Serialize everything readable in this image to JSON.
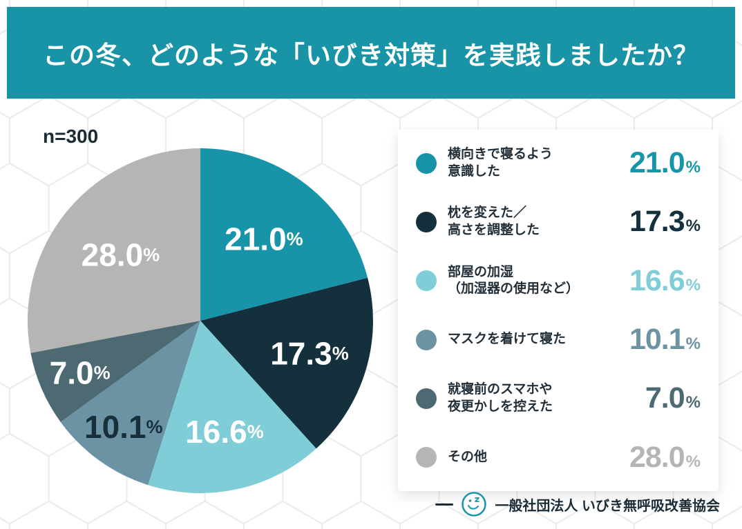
{
  "header": {
    "title": "この冬、どのような「いびき対策」を実践しましたか？",
    "background_color": "#1894a6"
  },
  "sample_label": "n=300",
  "chart_data": {
    "type": "pie",
    "title": "この冬、どのような「いびき対策」を実践しましたか？",
    "sample_size_label": "n=300",
    "start_angle_deg": 0,
    "direction": "clockwise",
    "legend_position": "right",
    "percent_symbol": "%",
    "slices": [
      {
        "label": "横向きで寝るよう\n意識した",
        "value": 21.0,
        "display": "21.0",
        "color": "#1794a8",
        "label_color": "#ffffff"
      },
      {
        "label": "枕を変えた／\n高さを調整した",
        "value": 17.3,
        "display": "17.3",
        "color": "#14303d",
        "label_color": "#ffffff"
      },
      {
        "label": "部屋の加湿\n（加湿器の使用など）",
        "value": 16.6,
        "display": "16.6",
        "color": "#7fcdd6",
        "label_color": "#ffffff"
      },
      {
        "label": "マスクを着けて寝た",
        "value": 10.1,
        "display": "10.1",
        "color": "#6b93a3",
        "label_color": "#17303c"
      },
      {
        "label": "就寝前のスマホや\n夜更かしを控えた",
        "value": 7.0,
        "display": "7.0",
        "color": "#4d6a73",
        "label_color": "#ffffff"
      },
      {
        "label": "その他",
        "value": 28.0,
        "display": "28.0",
        "color": "#b5b5b4",
        "label_color": "#ffffff"
      }
    ]
  },
  "footer": {
    "organization": "一般社団法人 いびき無呼吸改善協会"
  }
}
